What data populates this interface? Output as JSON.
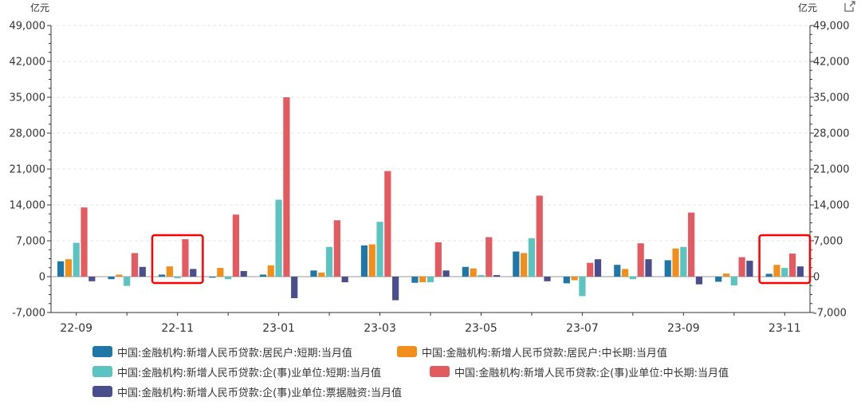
{
  "units": {
    "left": "亿元",
    "right": "亿元"
  },
  "colors": {
    "series": [
      "#1f77a8",
      "#f28e1c",
      "#5bc4c0",
      "#e15b61",
      "#4a4f8c"
    ],
    "highlight": "#ff0000",
    "grid": "#e6e6e6",
    "axis": "#333333"
  },
  "chart_data": {
    "type": "bar",
    "categories": [
      "22-09",
      "22-10",
      "22-11",
      "22-12",
      "23-01",
      "23-02",
      "23-03",
      "23-04",
      "23-05",
      "23-06",
      "23-07",
      "23-08",
      "23-09",
      "23-10",
      "23-11"
    ],
    "x_tick_labels": [
      "22-09",
      "22-11",
      "23-01",
      "23-03",
      "23-05",
      "23-07",
      "23-09",
      "23-11"
    ],
    "y_tick_labels": [
      "-7,000",
      "0",
      "7,000",
      "14,000",
      "21,000",
      "28,000",
      "35,000",
      "42,000",
      "49,000"
    ],
    "y_ticks": [
      -7000,
      0,
      7000,
      14000,
      21000,
      28000,
      35000,
      42000,
      49000
    ],
    "ylim": [
      -7000,
      49000
    ],
    "dual_axis_mirrored": true,
    "grid": true,
    "legend_position": "bottom",
    "series": [
      {
        "name": "中国:金融机构:新增人民币贷款:居民户:短期:当月值",
        "values": [
          3000,
          -500,
          400,
          -200,
          400,
          1200,
          6100,
          -1200,
          1900,
          4900,
          -1300,
          2300,
          3200,
          -1000,
          550
        ]
      },
      {
        "name": "中国:金融机构:新增人民币贷款:居民户:中长期:当月值",
        "values": [
          3400,
          400,
          2000,
          1700,
          2200,
          800,
          6300,
          -1100,
          1600,
          4600,
          -700,
          1500,
          5500,
          600,
          2300
        ]
      },
      {
        "name": "中国:金融机构:新增人民币贷款:企(事)业单位:短期:当月值",
        "values": [
          6600,
          -1800,
          -300,
          -500,
          15000,
          5800,
          10700,
          -1100,
          300,
          7500,
          -3800,
          -500,
          5800,
          -1700,
          1700
        ]
      },
      {
        "name": "中国:金融机构:新增人民币贷款:企(事)业单位:中长期:当月值",
        "values": [
          13500,
          4600,
          7300,
          12100,
          35000,
          11000,
          20600,
          6700,
          7700,
          15800,
          2700,
          6500,
          12500,
          3800,
          4500
        ]
      },
      {
        "name": "中国:金融机构:新增人民币贷款:企(事)业单位:票据融资:当月值",
        "values": [
          -900,
          1900,
          1500,
          1100,
          -4200,
          -1100,
          -4600,
          1200,
          300,
          -900,
          3400,
          3400,
          -1500,
          3100,
          2000
        ]
      }
    ],
    "highlights": [
      "22-11",
      "23-11"
    ]
  }
}
